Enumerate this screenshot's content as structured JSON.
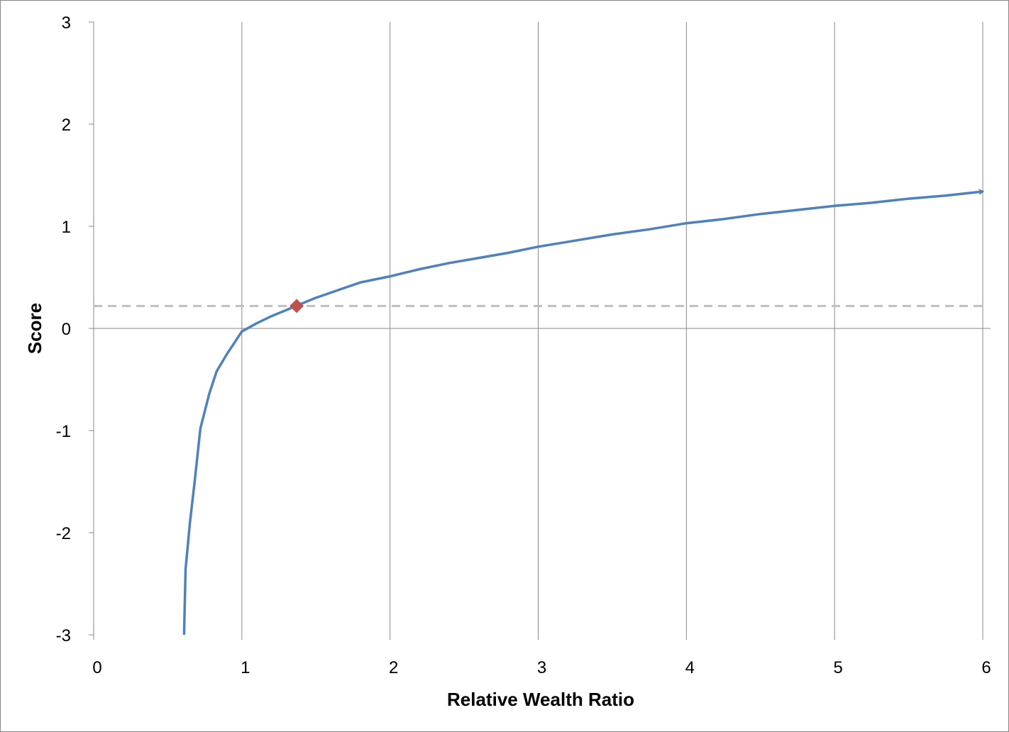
{
  "chart_data": {
    "type": "line",
    "title": "",
    "xlabel": "Relative Wealth Ratio",
    "ylabel": "Score",
    "xlim": [
      0,
      6
    ],
    "ylim": [
      -3,
      3
    ],
    "x_ticks": [
      "0",
      "1",
      "2",
      "3",
      "4",
      "5",
      "6"
    ],
    "y_ticks": [
      "3",
      "2",
      "1",
      "0",
      "-1",
      "-2",
      "-3"
    ],
    "grid": "vertical",
    "legend": "none",
    "curve": {
      "color": "#4F81BD",
      "end_marker": "arrow",
      "x": [
        0.61,
        0.62,
        0.65,
        0.68,
        0.72,
        0.78,
        0.83,
        0.9,
        0.95,
        1.0,
        1.1,
        1.2,
        1.3,
        1.4,
        1.5,
        1.6,
        1.7,
        1.8,
        1.9,
        2.0,
        2.2,
        2.4,
        2.6,
        2.8,
        3.0,
        3.25,
        3.5,
        3.75,
        4.0,
        4.25,
        4.5,
        4.75,
        5.0,
        5.25,
        5.5,
        5.75,
        6.0
      ],
      "y": [
        -3.0,
        -2.36,
        -1.9,
        -1.52,
        -0.98,
        -0.64,
        -0.42,
        -0.25,
        -0.14,
        -0.03,
        0.05,
        0.12,
        0.18,
        0.24,
        0.3,
        0.35,
        0.4,
        0.45,
        0.48,
        0.51,
        0.58,
        0.64,
        0.69,
        0.74,
        0.8,
        0.86,
        0.92,
        0.97,
        1.03,
        1.07,
        1.12,
        1.16,
        1.2,
        1.23,
        1.27,
        1.3,
        1.34
      ]
    },
    "marker": {
      "x": 1.37,
      "y": 0.22,
      "shape": "diamond",
      "color": "#C0504D"
    },
    "reference_line": {
      "y": 0.22,
      "style": "dashed",
      "color": "#BFBFBF"
    }
  }
}
